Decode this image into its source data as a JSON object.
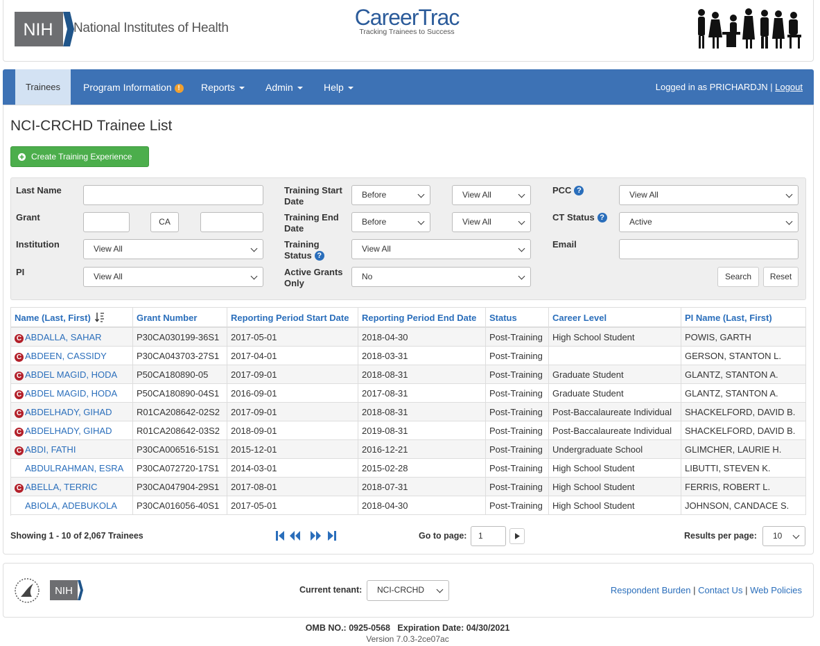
{
  "header": {
    "logo_text": "NIH",
    "org_name": "National Institutes of Health",
    "brand": "CareerTrac",
    "tagline": "Tracking Trainees to Success"
  },
  "nav": {
    "items": [
      "Trainees",
      "Program Information",
      "Reports",
      "Admin",
      "Help"
    ],
    "info_icon": "!",
    "login_text": "Logged in as PRICHARDJN",
    "separator": "|",
    "logout": "Logout"
  },
  "page_title": "NCI-CRCHD Trainee List",
  "create_button": "Create Training Experience",
  "filters": {
    "help_icon": "?",
    "last_name": {
      "label": "Last Name"
    },
    "grant": {
      "label": "Grant",
      "middle": "CA"
    },
    "institution": {
      "label": "Institution",
      "value": "View All"
    },
    "pi": {
      "label": "PI",
      "value": "View All"
    },
    "training_start": {
      "label": "Training Start Date",
      "operator": "Before",
      "value": "View All"
    },
    "training_end": {
      "label": "Training End Date",
      "operator": "Before",
      "value": "View All"
    },
    "training_status": {
      "label": "Training Status",
      "value": "View All"
    },
    "active_grants": {
      "label": "Active Grants Only",
      "value": "No"
    },
    "pcc": {
      "label": "PCC",
      "value": "View All"
    },
    "ct_status": {
      "label": "CT Status",
      "value": "Active"
    },
    "email": {
      "label": "Email"
    },
    "buttons": [
      "Search",
      "Reset"
    ]
  },
  "table": {
    "flag_letter": "C",
    "columns": [
      "Name (Last, First)",
      "Grant Number",
      "Reporting Period Start Date",
      "Reporting Period End Date",
      "Status",
      "Career Level",
      "PI Name (Last, First)"
    ],
    "rows": [
      {
        "flagged": true,
        "cells": [
          "ABDALLA, SAHAR",
          "P30CA030199-36S1",
          "2017-05-01",
          "2018-04-30",
          "Post-Training",
          "High School Student",
          "POWIS, GARTH"
        ]
      },
      {
        "flagged": true,
        "cells": [
          "ABDEEN, CASSIDY",
          "P30CA043703-27S1",
          "2017-04-01",
          "2018-03-31",
          "Post-Training",
          null,
          "GERSON, STANTON L."
        ]
      },
      {
        "flagged": true,
        "cells": [
          "ABDEL MAGID, HODA",
          "P50CA180890-05",
          "2017-09-01",
          "2018-08-31",
          "Post-Training",
          "Graduate Student",
          "GLANTZ, STANTON A."
        ]
      },
      {
        "flagged": true,
        "cells": [
          "ABDEL MAGID, HODA",
          "P50CA180890-04S1",
          "2016-09-01",
          "2017-08-31",
          "Post-Training",
          "Graduate Student",
          "GLANTZ, STANTON A."
        ]
      },
      {
        "flagged": true,
        "cells": [
          "ABDELHADY, GIHAD",
          "R01CA208642-02S2",
          "2017-09-01",
          "2018-08-31",
          "Post-Training",
          "Post-Baccalaureate Individual",
          "SHACKELFORD, DAVID B."
        ]
      },
      {
        "flagged": true,
        "cells": [
          "ABDELHADY, GIHAD",
          "R01CA208642-03S2",
          "2018-09-01",
          "2019-08-31",
          "Post-Training",
          "Post-Baccalaureate Individual",
          "SHACKELFORD, DAVID B."
        ]
      },
      {
        "flagged": true,
        "cells": [
          "ABDI, FATHI",
          "P30CA006516-51S1",
          "2015-12-01",
          "2016-12-21",
          "Post-Training",
          "Undergraduate School",
          "GLIMCHER, LAURIE H."
        ]
      },
      {
        "flagged": false,
        "cells": [
          "ABDULRAHMAN, ESRA",
          "P30CA072720-17S1",
          "2014-03-01",
          "2015-02-28",
          "Post-Training",
          "High School Student",
          "LIBUTTI, STEVEN K."
        ]
      },
      {
        "flagged": true,
        "cells": [
          "ABELLA, TERRIC",
          "P30CA047904-29S1",
          "2017-08-01",
          "2018-07-31",
          "Post-Training",
          "High School Student",
          "FERRIS, ROBERT L."
        ]
      },
      {
        "flagged": false,
        "cells": [
          "ABIOLA, ADEBUKOLA",
          "P30CA016056-40S1",
          "2017-05-01",
          "2018-04-30",
          "Post-Training",
          "High School Student",
          "JOHNSON, CANDACE S."
        ]
      }
    ]
  },
  "pagination": {
    "summary": "Showing 1 - 10 of 2,067 Trainees",
    "go_to_label": "Go to page:",
    "page": "1",
    "results_label": "Results per page:",
    "results": "10"
  },
  "footer": {
    "logo_text": "NIH",
    "tenant_label": "Current tenant:",
    "tenant": "NCI-CRCHD",
    "links": [
      "Respondent Burden",
      "Contact Us",
      "Web Policies"
    ],
    "separator": "|",
    "omb": "OMB NO.: 0925-0568",
    "expiration": "Expiration Date: 04/30/2021",
    "version": "Version 7.0.3-2ce07ac"
  }
}
